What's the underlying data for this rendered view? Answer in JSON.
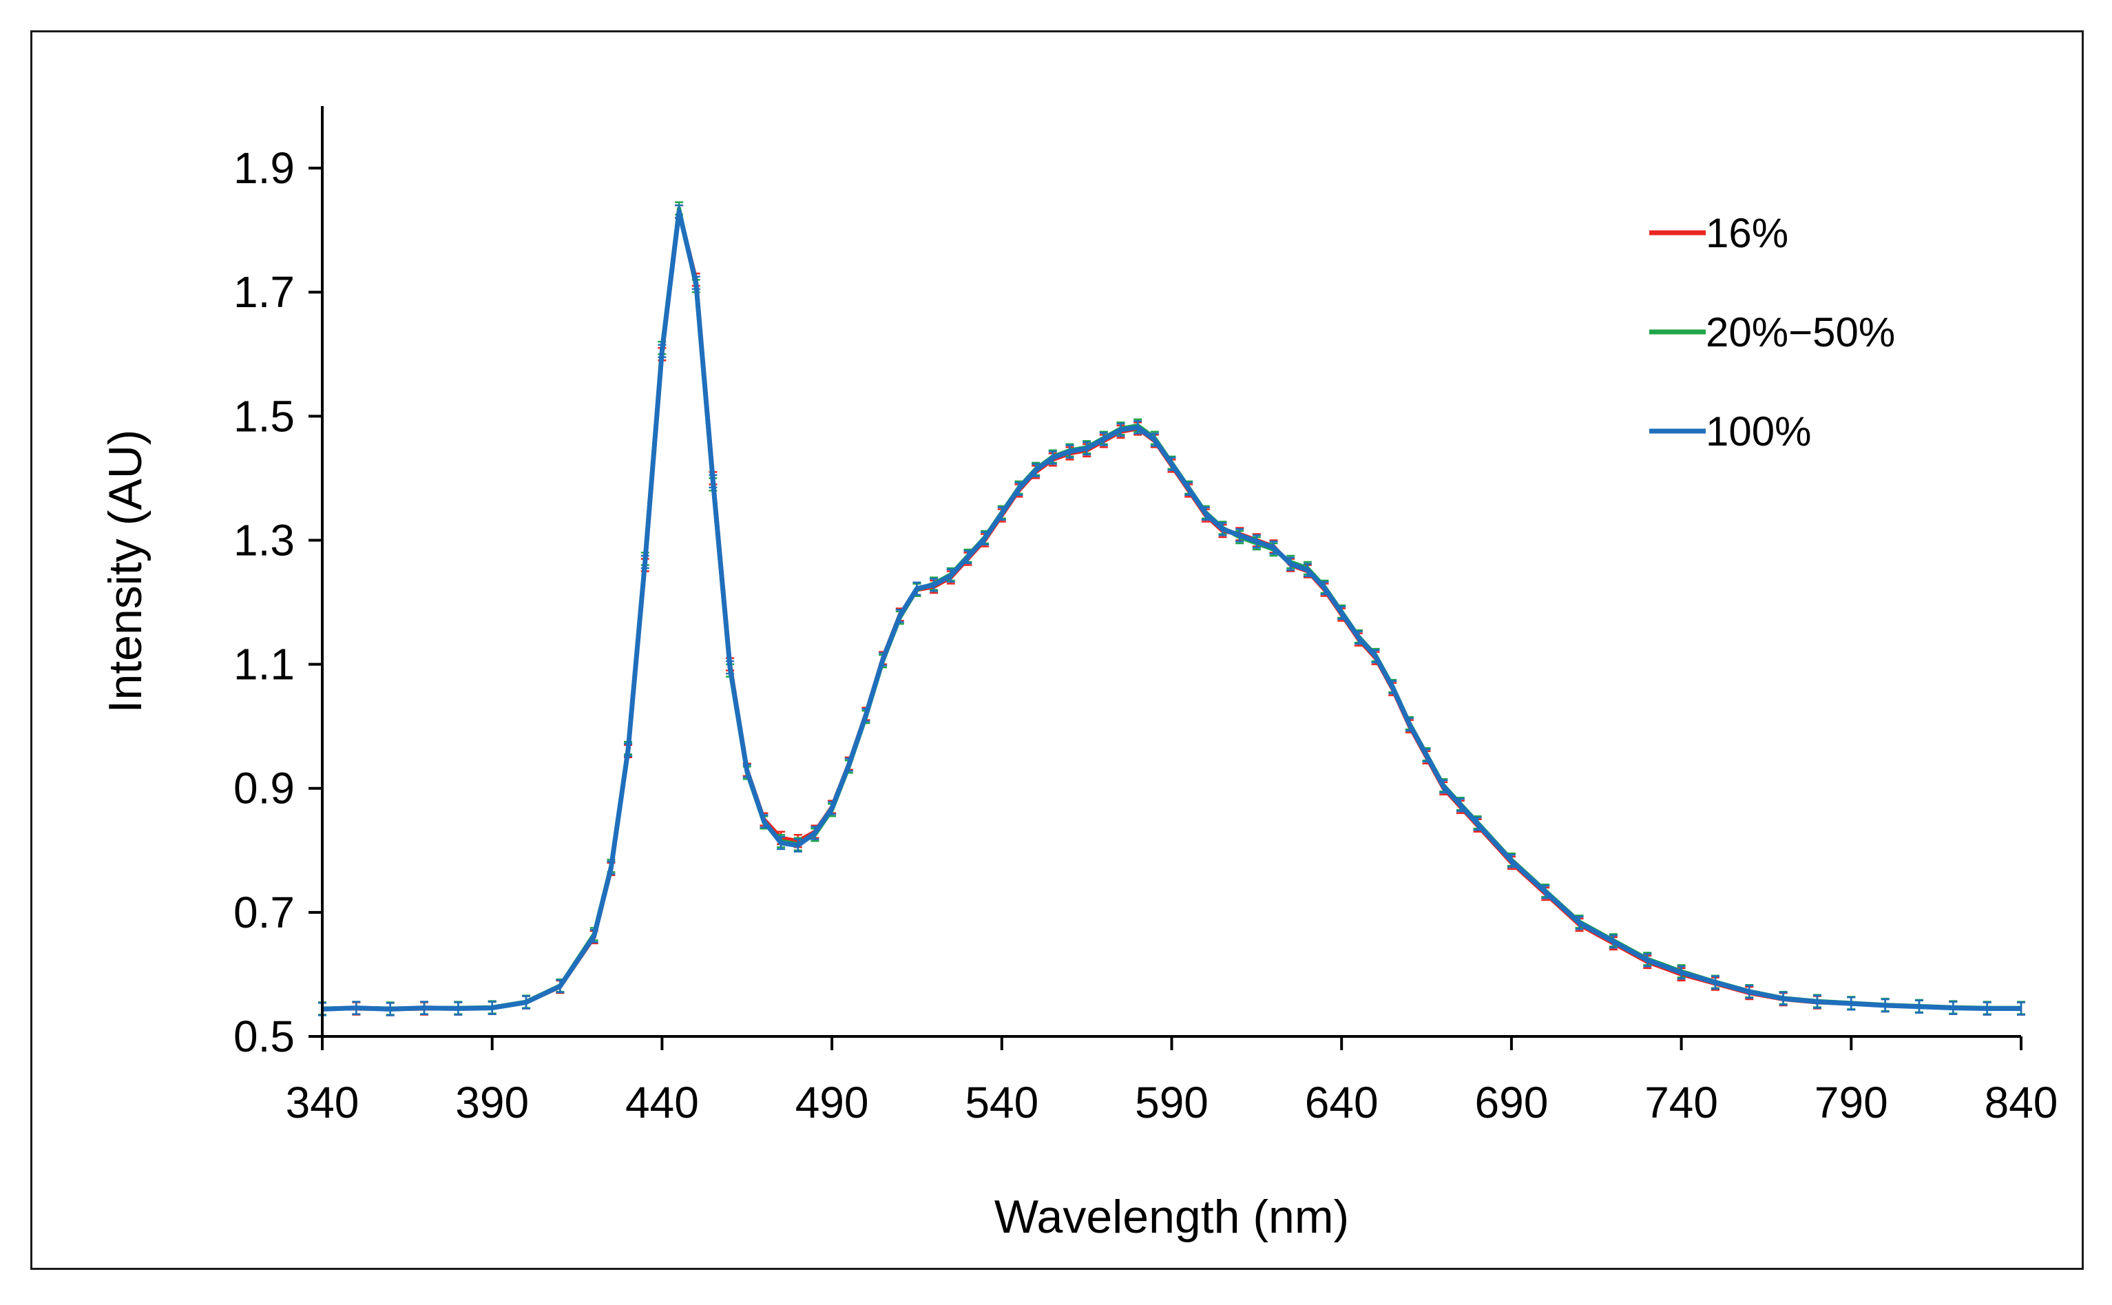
{
  "chart_data": {
    "type": "line",
    "title": "",
    "xlabel": "Wavelength (nm)",
    "ylabel": "Intensity (AU)",
    "xlim": [
      340,
      840
    ],
    "ylim": [
      0.5,
      2.0
    ],
    "x_ticks": [
      340,
      390,
      440,
      490,
      540,
      590,
      640,
      690,
      740,
      790,
      840
    ],
    "y_ticks": [
      0.5,
      0.7,
      0.9,
      1.1,
      1.3,
      1.5,
      1.7,
      1.9
    ],
    "y_tick_labels": [
      "0.5",
      "0.7",
      "0.9",
      "1.1",
      "1.3",
      "1.5",
      "1.7",
      "1.9"
    ],
    "grid": false,
    "legend_position": "top-right",
    "x": [
      340,
      350,
      360,
      370,
      380,
      390,
      400,
      410,
      420,
      425,
      430,
      435,
      440,
      445,
      450,
      455,
      460,
      465,
      470,
      475,
      480,
      485,
      490,
      495,
      500,
      505,
      510,
      515,
      520,
      525,
      530,
      535,
      540,
      545,
      550,
      555,
      560,
      565,
      570,
      575,
      580,
      585,
      590,
      595,
      600,
      605,
      610,
      615,
      620,
      625,
      630,
      635,
      640,
      645,
      650,
      655,
      660,
      665,
      670,
      675,
      680,
      690,
      700,
      710,
      720,
      730,
      740,
      750,
      760,
      770,
      780,
      790,
      800,
      810,
      820,
      830,
      840
    ],
    "series": [
      {
        "name": "16%",
        "color": "#e8251f",
        "values": [
          0.545,
          0.545,
          0.544,
          0.545,
          0.545,
          0.546,
          0.555,
          0.58,
          0.66,
          0.77,
          0.96,
          1.26,
          1.6,
          1.83,
          1.72,
          1.4,
          1.1,
          0.93,
          0.85,
          0.82,
          0.815,
          0.83,
          0.87,
          0.94,
          1.02,
          1.11,
          1.18,
          1.22,
          1.225,
          1.24,
          1.27,
          1.3,
          1.34,
          1.38,
          1.41,
          1.43,
          1.44,
          1.445,
          1.46,
          1.475,
          1.48,
          1.46,
          1.42,
          1.38,
          1.34,
          1.315,
          1.31,
          1.3,
          1.29,
          1.26,
          1.25,
          1.22,
          1.18,
          1.14,
          1.11,
          1.06,
          1.0,
          0.95,
          0.9,
          0.87,
          0.84,
          0.78,
          0.73,
          0.68,
          0.65,
          0.62,
          0.6,
          0.585,
          0.57,
          0.56,
          0.555,
          0.553,
          0.55,
          0.548,
          0.546,
          0.545,
          0.545
        ]
      },
      {
        "name": "20%−50%",
        "color": "#1fa54a",
        "values": [
          0.545,
          0.546,
          0.545,
          0.546,
          0.546,
          0.547,
          0.556,
          0.582,
          0.665,
          0.775,
          0.965,
          1.27,
          1.61,
          1.835,
          1.71,
          1.39,
          1.09,
          0.925,
          0.845,
          0.815,
          0.81,
          0.825,
          0.865,
          0.935,
          1.015,
          1.105,
          1.175,
          1.22,
          1.23,
          1.245,
          1.275,
          1.305,
          1.345,
          1.385,
          1.415,
          1.435,
          1.445,
          1.45,
          1.465,
          1.48,
          1.485,
          1.465,
          1.425,
          1.385,
          1.345,
          1.32,
          1.305,
          1.295,
          1.285,
          1.265,
          1.255,
          1.225,
          1.185,
          1.145,
          1.115,
          1.065,
          1.005,
          0.955,
          0.905,
          0.875,
          0.845,
          0.785,
          0.735,
          0.685,
          0.655,
          0.625,
          0.605,
          0.588,
          0.573,
          0.562,
          0.557,
          0.554,
          0.551,
          0.549,
          0.547,
          0.546,
          0.546
        ]
      },
      {
        "name": "100%",
        "color": "#1f6fbd",
        "values": [
          0.544,
          0.546,
          0.544,
          0.546,
          0.545,
          0.546,
          0.555,
          0.581,
          0.662,
          0.772,
          0.962,
          1.265,
          1.605,
          1.83,
          1.715,
          1.395,
          1.095,
          0.928,
          0.847,
          0.812,
          0.808,
          0.828,
          0.868,
          0.938,
          1.018,
          1.108,
          1.178,
          1.222,
          1.228,
          1.243,
          1.273,
          1.303,
          1.343,
          1.383,
          1.413,
          1.433,
          1.443,
          1.448,
          1.463,
          1.478,
          1.482,
          1.462,
          1.423,
          1.383,
          1.343,
          1.318,
          1.308,
          1.298,
          1.288,
          1.262,
          1.252,
          1.223,
          1.183,
          1.143,
          1.113,
          1.063,
          1.003,
          0.953,
          0.903,
          0.873,
          0.843,
          0.783,
          0.733,
          0.683,
          0.653,
          0.623,
          0.603,
          0.587,
          0.572,
          0.561,
          0.556,
          0.553,
          0.55,
          0.548,
          0.546,
          0.545,
          0.545
        ]
      }
    ]
  }
}
